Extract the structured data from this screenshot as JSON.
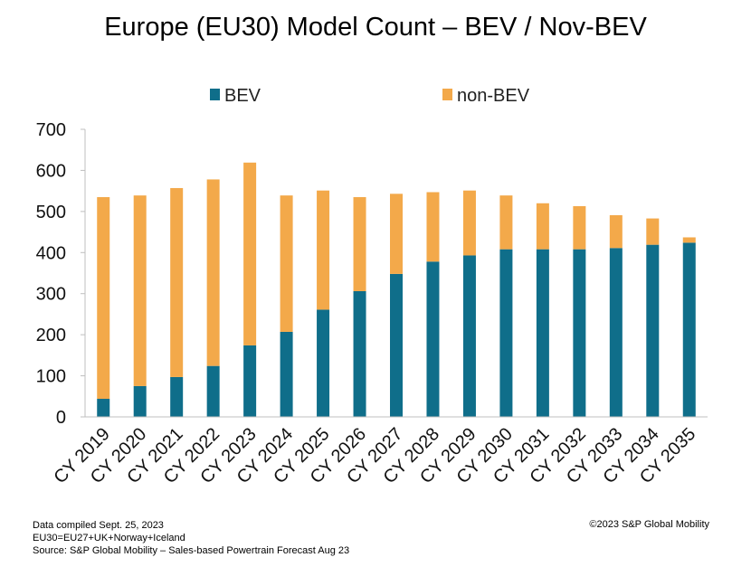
{
  "chart_data": {
    "type": "bar",
    "stacked": true,
    "title": "Europe (EU30) Model Count – BEV / Nov-BEV",
    "categories": [
      "CY 2019",
      "CY 2020",
      "CY 2021",
      "CY 2022",
      "CY 2023",
      "CY 2024",
      "CY 2025",
      "CY 2026",
      "CY 2027",
      "CY 2028",
      "CY 2029",
      "CY 2030",
      "CY 2031",
      "CY 2032",
      "CY 2033",
      "CY 2034",
      "CY 2035"
    ],
    "series": [
      {
        "name": "BEV",
        "color": "#0f6e8a",
        "values": [
          44,
          75,
          97,
          124,
          174,
          207,
          261,
          306,
          348,
          378,
          393,
          408,
          408,
          408,
          411,
          419,
          424
        ]
      },
      {
        "name": "non-BEV",
        "color": "#f3a94a",
        "values": [
          491,
          464,
          460,
          454,
          445,
          332,
          290,
          229,
          195,
          169,
          158,
          131,
          112,
          105,
          80,
          64,
          13
        ]
      }
    ],
    "xlabel": "",
    "ylabel": "",
    "ylim": [
      0,
      700
    ],
    "yticks": [
      0,
      100,
      200,
      300,
      400,
      500,
      600,
      700
    ],
    "grid": false,
    "legend": "top-center"
  },
  "footer": {
    "note_compiled": "Data compiled Sept. 25, 2023",
    "note_definition": "EU30=EU27+UK+Norway+Iceland",
    "note_source": "Source: S&P Global Mobility – Sales-based Powertrain Forecast Aug 23",
    "copyright": "©2023 S&P Global Mobility"
  }
}
